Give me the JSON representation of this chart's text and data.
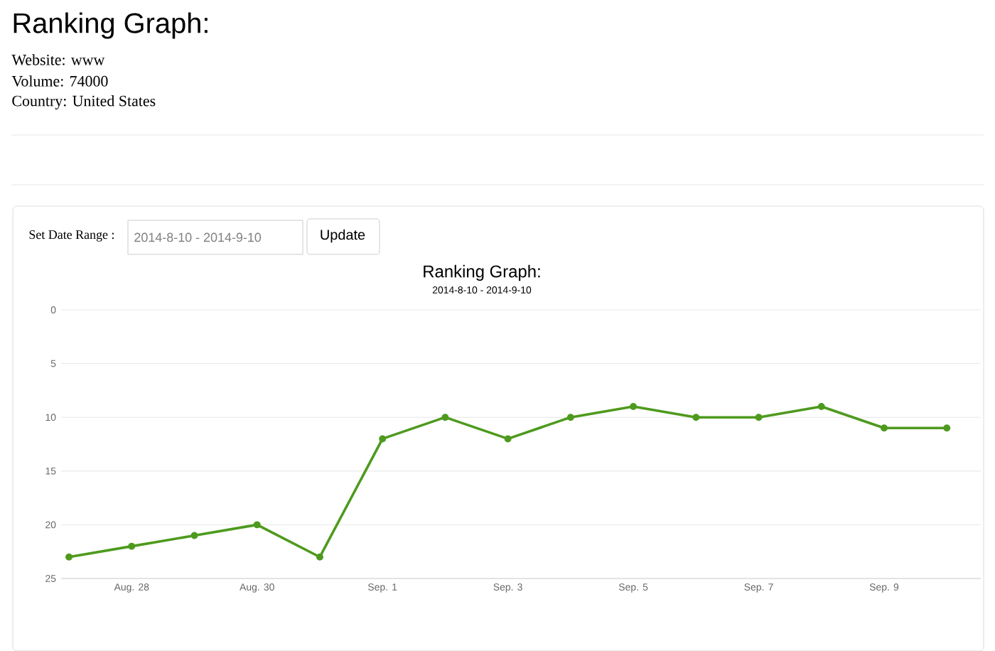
{
  "chart_data": {
    "type": "line",
    "title": "Ranking Graph:",
    "subtitle": "2014-8-10 - 2014-9-10",
    "annotations": [
      "Ranking Graph:",
      "Website: www",
      "Volume: 74000",
      "Country: United States",
      "Set Date Range :",
      "2014-8-10 - 2014-9-10",
      "Update"
    ],
    "x": [
      "2014-08-27",
      "2014-08-28",
      "2014-08-29",
      "2014-08-30",
      "2014-08-31",
      "2014-09-01",
      "2014-09-02",
      "2014-09-03",
      "2014-09-04",
      "2014-09-05",
      "2014-09-06",
      "2014-09-07",
      "2014-09-08",
      "2014-09-09",
      "2014-09-10"
    ],
    "series": [
      {
        "color": "#4e9a1e",
        "values": [
          23,
          22,
          21,
          20,
          23,
          12,
          10,
          12,
          10,
          9,
          10,
          10,
          9,
          11,
          11
        ]
      }
    ],
    "xlim": [
      "2014-08-26T21:00",
      "2014-09-10T13:00"
    ],
    "xticks": [
      {
        "value": "2014-08-28",
        "label": "Aug. 28"
      },
      {
        "value": "2014-08-30",
        "label": "Aug. 30"
      },
      {
        "value": "2014-09-01",
        "label": "Sep. 1"
      },
      {
        "value": "2014-09-03",
        "label": "Sep. 3"
      },
      {
        "value": "2014-09-05",
        "label": "Sep. 5"
      },
      {
        "value": "2014-09-07",
        "label": "Sep. 7"
      },
      {
        "value": "2014-09-09",
        "label": "Sep. 9"
      }
    ],
    "ylim": [
      25,
      0
    ],
    "yticks": [
      0,
      5,
      10,
      15,
      20,
      25
    ],
    "grid": "y",
    "marker": "circle",
    "line_style": "solid"
  }
}
